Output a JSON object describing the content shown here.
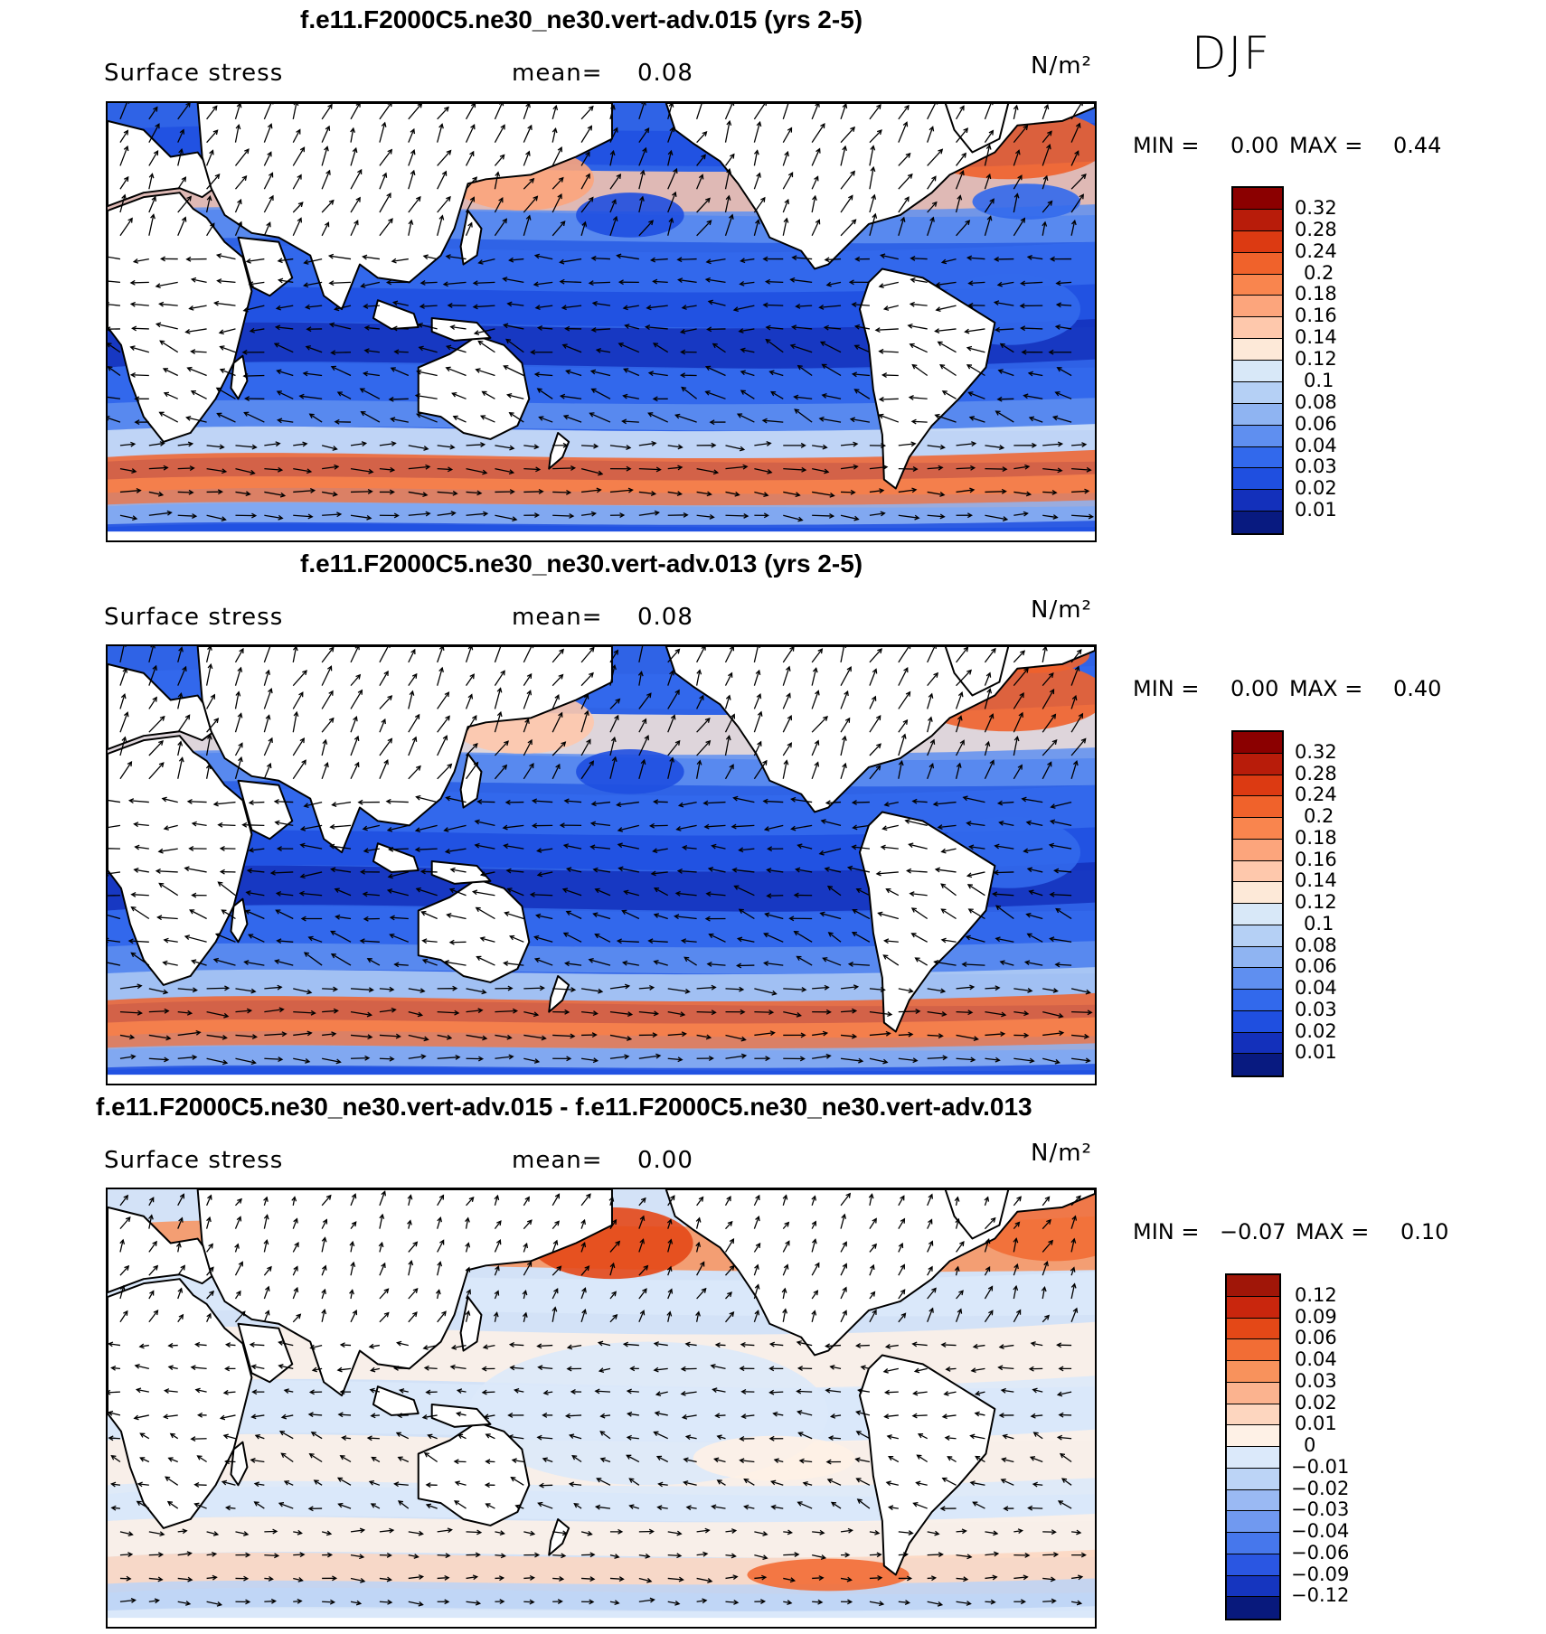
{
  "season": "DJF",
  "panels": [
    {
      "title": "f.e11.F2000C5.ne30_ne30.vert-adv.015 (yrs 2-5)",
      "field": "Surface stress",
      "mean_label": "mean=",
      "mean": "0.08",
      "units": "N/m²",
      "min_label": "MIN =",
      "min": "0.00",
      "max_label": "MAX =",
      "max": "0.44",
      "colorbar_labels": [
        "0.32",
        "0.28",
        "0.24",
        "0.2",
        "0.18",
        "0.16",
        "0.14",
        "0.12",
        "0.1",
        "0.08",
        "0.06",
        "0.04",
        "0.03",
        "0.02",
        "0.01"
      ],
      "colorbar_colors": [
        "#8b0000",
        "#b81c0a",
        "#dc3a12",
        "#f0622b",
        "#f9854e",
        "#fca57c",
        "#fec8ac",
        "#fde9d8",
        "#d8e8f8",
        "#b5d0f5",
        "#8fb4f2",
        "#5f8ff0",
        "#3269ec",
        "#1f4fe0",
        "#1330bb",
        "#081a80"
      ],
      "ocean_color": "#2f63e6"
    },
    {
      "title": "f.e11.F2000C5.ne30_ne30.vert-adv.013 (yrs 2-5)",
      "field": "Surface stress",
      "mean_label": "mean=",
      "mean": "0.08",
      "units": "N/m²",
      "min_label": "MIN =",
      "min": "0.00",
      "max_label": "MAX =",
      "max": "0.40",
      "colorbar_labels": [
        "0.32",
        "0.28",
        "0.24",
        "0.2",
        "0.18",
        "0.16",
        "0.14",
        "0.12",
        "0.1",
        "0.08",
        "0.06",
        "0.04",
        "0.03",
        "0.02",
        "0.01"
      ],
      "colorbar_colors": [
        "#8b0000",
        "#b81c0a",
        "#dc3a12",
        "#f0622b",
        "#f9854e",
        "#fca57c",
        "#fec8ac",
        "#fde9d8",
        "#d8e8f8",
        "#b5d0f5",
        "#8fb4f2",
        "#5f8ff0",
        "#3269ec",
        "#1f4fe0",
        "#1330bb",
        "#081a80"
      ],
      "ocean_color": "#2f63e6"
    },
    {
      "title": "f.e11.F2000C5.ne30_ne30.vert-adv.015 - f.e11.F2000C5.ne30_ne30.vert-adv.013",
      "field": "Surface stress",
      "mean_label": "mean=",
      "mean": "0.00",
      "units": "N/m²",
      "min_label": "MIN =",
      "min": "−0.07",
      "max_label": "MAX =",
      "max": "0.10",
      "colorbar_labels": [
        "0.12",
        "0.09",
        "0.06",
        "0.04",
        "0.03",
        "0.02",
        "0.01",
        "0",
        "−0.01",
        "−0.02",
        "−0.03",
        "−0.04",
        "−0.06",
        "−0.09",
        "−0.12"
      ],
      "colorbar_colors": [
        "#a01608",
        "#c9260d",
        "#e44817",
        "#f26d35",
        "#f8925c",
        "#fbb38f",
        "#fdd6bf",
        "#fef1e6",
        "#dbe9fa",
        "#bcd4f6",
        "#9ab9f3",
        "#7099f0",
        "#4677ec",
        "#2a56e2",
        "#1535bf",
        "#08197c"
      ],
      "ocean_color": "#d3e2f7"
    }
  ]
}
